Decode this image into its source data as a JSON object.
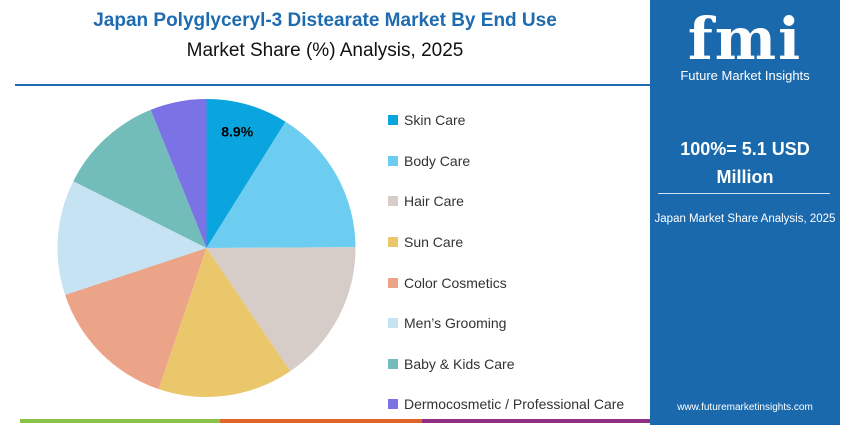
{
  "header": {
    "title": "Japan Polyglyceryl-3 Distearate Market By End Use",
    "subtitle": "Market Share (%) Analysis, 2025"
  },
  "chart_data": {
    "type": "pie",
    "start_angle": "top, clockwise",
    "categories": [
      "Skin Care",
      "Body Care",
      "Hair Care",
      "Sun Care",
      "Color Cosmetics",
      "Men’s Grooming",
      "Baby & Kids Care",
      "Dermocosmetic / Professional Care"
    ],
    "values": [
      8.9,
      16.0,
      15.6,
      14.7,
      14.7,
      12.5,
      11.5,
      6.1
    ],
    "colors": [
      "#0aa5de",
      "#6ccdf0",
      "#d6ccc8",
      "#ebc76b",
      "#eba488",
      "#c5e3f3",
      "#72bdb9",
      "#7b72e6"
    ],
    "data_labels": [
      {
        "index": 0,
        "text": "8.9%"
      }
    ],
    "legend_placement": "right"
  },
  "panel": {
    "logo": "fmi",
    "logo_text": "Future Market Insights",
    "total": "100%= 5.1 USD Million",
    "caption": "Japan Market Share Analysis, 2025",
    "url": "www.futuremarketinsights.com",
    "color": "#1b69ad"
  },
  "footer_bar_colors": [
    "#8bc34a",
    "#e2642b",
    "#8e2f83"
  ]
}
